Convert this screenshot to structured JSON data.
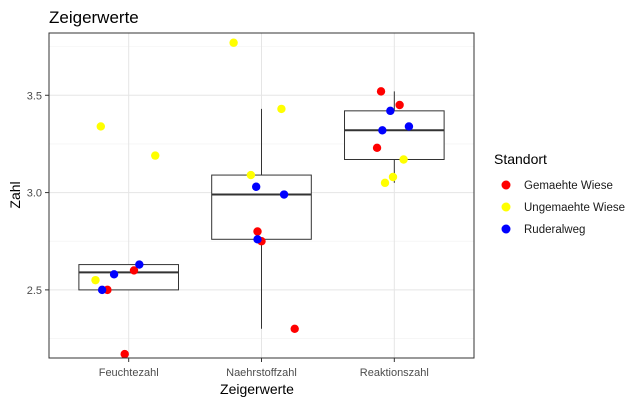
{
  "chart_data": {
    "type": "boxplot-with-jitter",
    "title": "Zeigerwerte",
    "xlabel": "Zeigerwerte",
    "ylabel": "Zahl",
    "categories": [
      "Feuchtezahl",
      "Naehrstoffzahl",
      "Reaktionszahl"
    ],
    "ylim": [
      2.15,
      3.82
    ],
    "yticks": [
      2.5,
      3.0,
      3.5
    ],
    "ytick_labels": [
      "2.5",
      "3.0",
      "3.5"
    ],
    "grid": true,
    "legend_position": "right",
    "legend": {
      "title": "Standort",
      "entries": [
        {
          "name": "Gemaehte Wiese",
          "color": "#ff0000"
        },
        {
          "name": "Ungemaehte Wiese",
          "color": "#ffff00"
        },
        {
          "name": "Ruderalweg",
          "color": "#0000ff"
        }
      ]
    },
    "boxes": [
      {
        "category": "Feuchtezahl",
        "lower_whisker": 2.5,
        "q1": 2.5,
        "median": 2.59,
        "q3": 2.63,
        "upper_whisker": 2.63
      },
      {
        "category": "Naehrstoffzahl",
        "lower_whisker": 2.3,
        "q1": 2.76,
        "median": 2.99,
        "q3": 3.09,
        "upper_whisker": 3.43
      },
      {
        "category": "Reaktionszahl",
        "lower_whisker": 3.05,
        "q1": 3.17,
        "median": 3.32,
        "q3": 3.42,
        "upper_whisker": 3.52
      }
    ],
    "series": [
      {
        "name": "Gemaehte Wiese",
        "color": "#ff0000",
        "points": [
          {
            "category": "Feuchtezahl",
            "x_offset": -0.16,
            "y": 2.5
          },
          {
            "category": "Feuchtezahl",
            "x_offset": 0.04,
            "y": 2.6
          },
          {
            "category": "Feuchtezahl",
            "x_offset": -0.03,
            "y": 2.17
          },
          {
            "category": "Naehrstoffzahl",
            "x_offset": -0.03,
            "y": 2.8
          },
          {
            "category": "Naehrstoffzahl",
            "x_offset": 0.0,
            "y": 2.75
          },
          {
            "category": "Naehrstoffzahl",
            "x_offset": 0.25,
            "y": 2.3
          },
          {
            "category": "Reaktionszahl",
            "x_offset": -0.1,
            "y": 3.52
          },
          {
            "category": "Reaktionszahl",
            "x_offset": 0.04,
            "y": 3.45
          },
          {
            "category": "Reaktionszahl",
            "x_offset": -0.13,
            "y": 3.23
          }
        ]
      },
      {
        "name": "Ungemaehte Wiese",
        "color": "#ffff00",
        "points": [
          {
            "category": "Feuchtezahl",
            "x_offset": -0.21,
            "y": 3.34
          },
          {
            "category": "Feuchtezahl",
            "x_offset": 0.2,
            "y": 3.19
          },
          {
            "category": "Feuchtezahl",
            "x_offset": -0.25,
            "y": 2.55
          },
          {
            "category": "Naehrstoffzahl",
            "x_offset": -0.21,
            "y": 3.77
          },
          {
            "category": "Naehrstoffzahl",
            "x_offset": 0.15,
            "y": 3.43
          },
          {
            "category": "Naehrstoffzahl",
            "x_offset": -0.08,
            "y": 3.09
          },
          {
            "category": "Reaktionszahl",
            "x_offset": 0.07,
            "y": 3.17
          },
          {
            "category": "Reaktionszahl",
            "x_offset": -0.07,
            "y": 3.05
          },
          {
            "category": "Reaktionszahl",
            "x_offset": -0.01,
            "y": 3.08
          }
        ]
      },
      {
        "name": "Ruderalweg",
        "color": "#0000ff",
        "points": [
          {
            "category": "Feuchtezahl",
            "x_offset": -0.11,
            "y": 2.58
          },
          {
            "category": "Feuchtezahl",
            "x_offset": 0.08,
            "y": 2.63
          },
          {
            "category": "Feuchtezahl",
            "x_offset": -0.2,
            "y": 2.5
          },
          {
            "category": "Naehrstoffzahl",
            "x_offset": -0.04,
            "y": 3.03
          },
          {
            "category": "Naehrstoffzahl",
            "x_offset": 0.17,
            "y": 2.99
          },
          {
            "category": "Naehrstoffzahl",
            "x_offset": -0.03,
            "y": 2.76
          },
          {
            "category": "Reaktionszahl",
            "x_offset": -0.03,
            "y": 3.42
          },
          {
            "category": "Reaktionszahl",
            "x_offset": 0.11,
            "y": 3.34
          },
          {
            "category": "Reaktionszahl",
            "x_offset": -0.09,
            "y": 3.32
          }
        ]
      }
    ]
  }
}
